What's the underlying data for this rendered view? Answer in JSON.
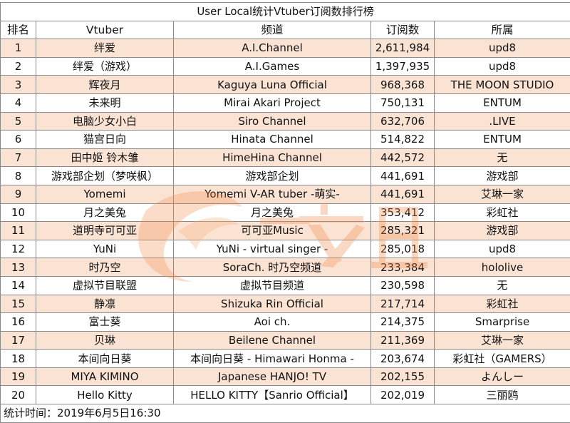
{
  "title": "User Local统计Vtuber订阅数排行榜",
  "headers": [
    "排名",
    "Vtuber",
    "频道",
    "订阅数",
    "所属"
  ],
  "rows": [
    [
      "1",
      "绊爱",
      "A.I.Channel",
      "2,611,984",
      "upd8"
    ],
    [
      "2",
      "绊爱（游戏）",
      "A.I.Games",
      "1,397,935",
      "upd8"
    ],
    [
      "3",
      "辉夜月",
      "Kaguya Luna Official",
      "968,368",
      "THE MOON STUDIO"
    ],
    [
      "4",
      "未来明",
      "Mirai Akari Project",
      "750,131",
      "ENTUM"
    ],
    [
      "5",
      "电脑少女小白",
      "Siro Channel",
      "632,706",
      ".LIVE"
    ],
    [
      "6",
      "猫宫日向",
      "Hinata Channel",
      "514,822",
      "ENTUM"
    ],
    [
      "7",
      "田中姬 铃木雏",
      "HimeHina Channel",
      "442,572",
      "无"
    ],
    [
      "8",
      "游戏部企划（梦咲枫）",
      "游戏部企划",
      "441,691",
      "游戏部"
    ],
    [
      "9",
      "Yomemi",
      "Yomemi V-AR tuber -萌实-",
      "441,691",
      "艾琳一家"
    ],
    [
      "10",
      "月之美兔",
      "月之美兔",
      "353,412",
      "彩虹社"
    ],
    [
      "11",
      "道明寺可可亚",
      "可可亚Music",
      "285,321",
      "游戏部"
    ],
    [
      "12",
      "YuNi",
      "YuNi - virtual singer -",
      "285,018",
      "upd8"
    ],
    [
      "13",
      "时乃空",
      "SoraCh. 时乃空频道",
      "233,384",
      "hololive"
    ],
    [
      "14",
      "虚拟节目联盟",
      "虚拟节目频道",
      "230,598",
      "无"
    ],
    [
      "15",
      "静凛",
      "Shizuka Rin Official",
      "217,714",
      "彩虹社"
    ],
    [
      "16",
      "富士葵",
      "Aoi ch.",
      "214,375",
      "Smarprise"
    ],
    [
      "17",
      "贝琳",
      "Beilene Channel",
      "211,369",
      "艾琳一家"
    ],
    [
      "18",
      "本间向日葵",
      "本间向日葵 - Himawari Honma -",
      "203,674",
      "彩虹社（GAMERS）"
    ],
    [
      "19",
      "MIYA KIMINO",
      "Japanese HANJO! TV",
      "202,155",
      "よんしー"
    ],
    [
      "20",
      "Hello Kitty",
      "HELLO KITTY【Sanrio Official】",
      "202,019",
      "三丽鸥"
    ]
  ],
  "footer": "统计时间：2019年6月5日16:30",
  "colors": {
    "odd_row": "#fbe3d4",
    "even_row": "#ffffff",
    "border": "#8a8a8a",
    "watermark": "#f08a4b"
  },
  "watermark_icon": "logo-watermark"
}
